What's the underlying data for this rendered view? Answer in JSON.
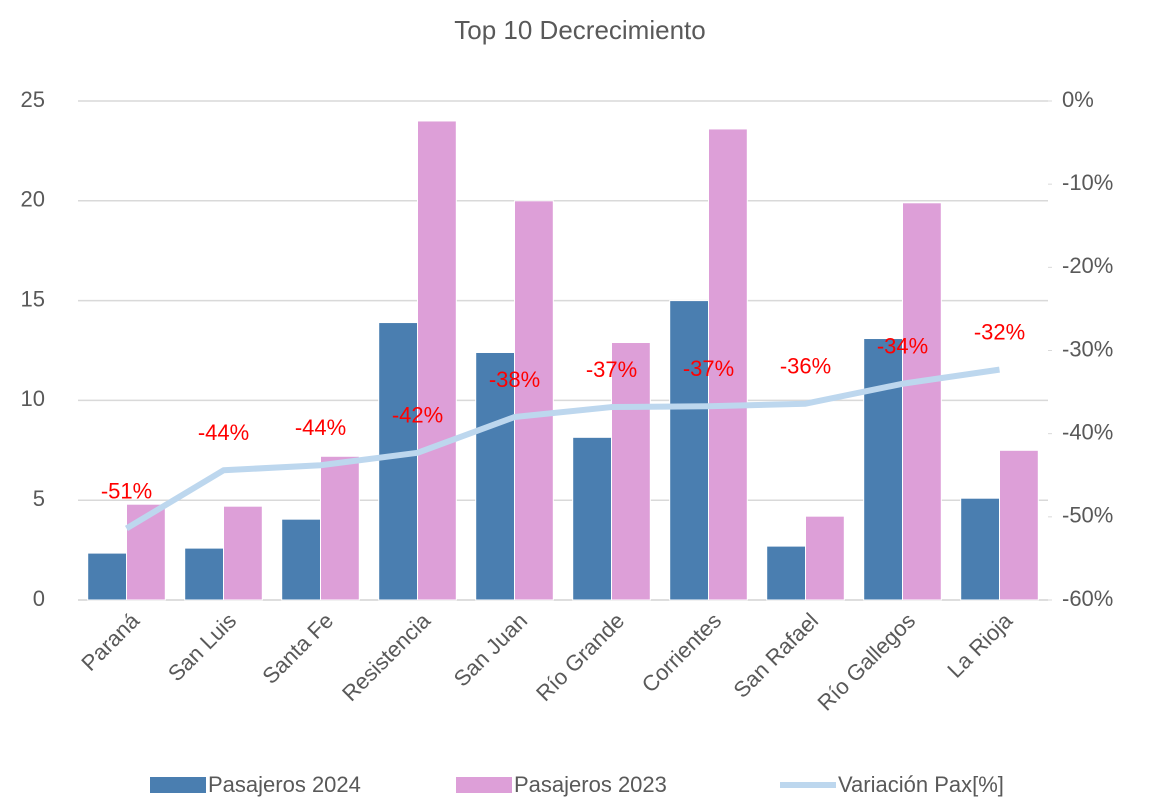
{
  "chart_data": {
    "type": "bar_line",
    "title": "Top 10 Decrecimiento",
    "categories": [
      "Paraná",
      "San Luis",
      "Santa Fe",
      "Resistencia",
      "San Juan",
      "Río Grande",
      "Corrientes",
      "San Rafael",
      "Río Gallegos",
      "La Rioja"
    ],
    "series": [
      {
        "name": "Pasajeros 2024",
        "type": "bar",
        "color": "#4a7eb0",
        "values": [
          2.35,
          2.6,
          4.05,
          13.9,
          12.4,
          8.15,
          15.0,
          2.7,
          13.1,
          5.1
        ]
      },
      {
        "name": "Pasajeros 2023",
        "type": "bar",
        "color": "#dd9fd8",
        "values": [
          4.8,
          4.7,
          7.2,
          24.0,
          20.0,
          12.9,
          23.6,
          4.2,
          19.9,
          7.5
        ]
      },
      {
        "name": "Variación Pax[%]",
        "type": "line",
        "axis": "y2",
        "color": "#bdd7ee",
        "label_color": "#ff0000",
        "values": [
          -51.4,
          -44.4,
          -43.8,
          -42.3,
          -38.0,
          -36.8,
          -36.7,
          -36.4,
          -34.0,
          -32.3
        ],
        "value_labels": [
          "-51%",
          "-44%",
          "-44%",
          "-42%",
          "-38%",
          "-37%",
          "-37%",
          "-36%",
          "-34%",
          "-32%"
        ]
      }
    ],
    "ylim": [
      0,
      25
    ],
    "yticks": [
      0,
      5,
      10,
      15,
      20,
      25
    ],
    "y2lim": [
      -60,
      0
    ],
    "y2ticks": [
      {
        "value": -60,
        "label": "-60%"
      },
      {
        "value": -50,
        "label": "-50%"
      },
      {
        "value": -40,
        "label": "-40%"
      },
      {
        "value": -30,
        "label": "-30%"
      },
      {
        "value": -20,
        "label": "-20%"
      },
      {
        "value": -10,
        "label": "-10%"
      },
      {
        "value": 0,
        "label": "0%"
      }
    ],
    "grid": true
  }
}
